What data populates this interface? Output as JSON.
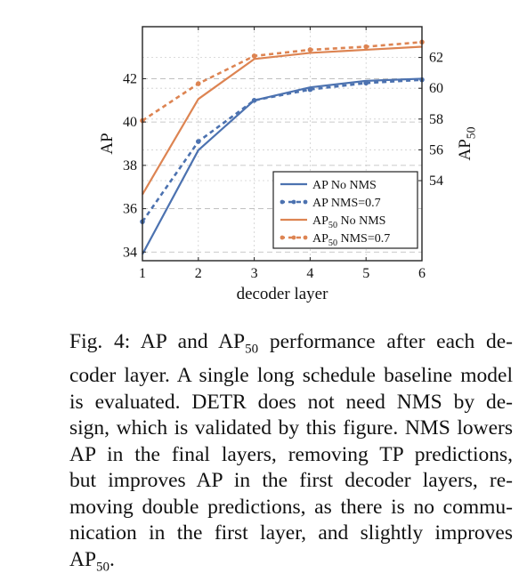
{
  "chart_data": {
    "type": "line",
    "xlabel": "decoder layer",
    "ylabel": "AP",
    "y2label_base": "AP",
    "y2label_sub": "50",
    "x": [
      1,
      2,
      3,
      4,
      5,
      6
    ],
    "xlim": [
      1,
      6
    ],
    "ylim": [
      33.6,
      44.4
    ],
    "y2lim": [
      48.8,
      64.0
    ],
    "x_ticks": [
      "1",
      "2",
      "3",
      "4",
      "5",
      "6"
    ],
    "y_ticks": [
      34,
      36,
      38,
      40,
      42
    ],
    "y2_ticks": [
      54,
      56,
      58,
      60,
      62
    ],
    "grid": true,
    "legend_position": "lower-right",
    "series": [
      {
        "name_base": "AP",
        "name_sub": "",
        "name_rest": " No NMS",
        "axis": "left",
        "color": "#4c72b0",
        "dash": "solid",
        "values": [
          33.9,
          38.7,
          41.0,
          41.6,
          41.9,
          42.0
        ]
      },
      {
        "name_base": "AP",
        "name_sub": "",
        "name_rest": " NMS=0.7",
        "axis": "left",
        "color": "#4c72b0",
        "dash": "dotted",
        "values": [
          35.4,
          39.1,
          41.0,
          41.5,
          41.8,
          41.95
        ]
      },
      {
        "name_base": "AP",
        "name_sub": "50",
        "name_rest": " No NMS",
        "axis": "right",
        "color": "#dd8452",
        "dash": "solid",
        "values": [
          53.1,
          59.3,
          61.9,
          62.3,
          62.5,
          62.7
        ]
      },
      {
        "name_base": "AP",
        "name_sub": "50",
        "name_rest": " NMS=0.7",
        "axis": "right",
        "color": "#dd8452",
        "dash": "dotted",
        "values": [
          57.9,
          60.3,
          62.1,
          62.5,
          62.7,
          63.0
        ]
      }
    ]
  },
  "caption": {
    "lines": [
      {
        "pre": "Fig. 4: AP and AP",
        "sub": "50",
        "post": " performance after each de-"
      },
      {
        "pre": "coder layer. A single long schedule baseline model",
        "sub": "",
        "post": ""
      },
      {
        "pre": "is evaluated. DETR does not need NMS by de-",
        "sub": "",
        "post": ""
      },
      {
        "pre": "sign, which is validated by this figure. NMS lowers",
        "sub": "",
        "post": ""
      },
      {
        "pre": "AP in the final layers, removing TP predictions,",
        "sub": "",
        "post": ""
      },
      {
        "pre": "but improves AP in the first decoder layers, re-",
        "sub": "",
        "post": ""
      },
      {
        "pre": "moving double predictions, as there is no commu-",
        "sub": "",
        "post": ""
      },
      {
        "pre": "nication in the first layer, and slightly improves",
        "sub": "",
        "post": ""
      },
      {
        "pre": "AP",
        "sub": "50",
        "post": "."
      }
    ]
  }
}
